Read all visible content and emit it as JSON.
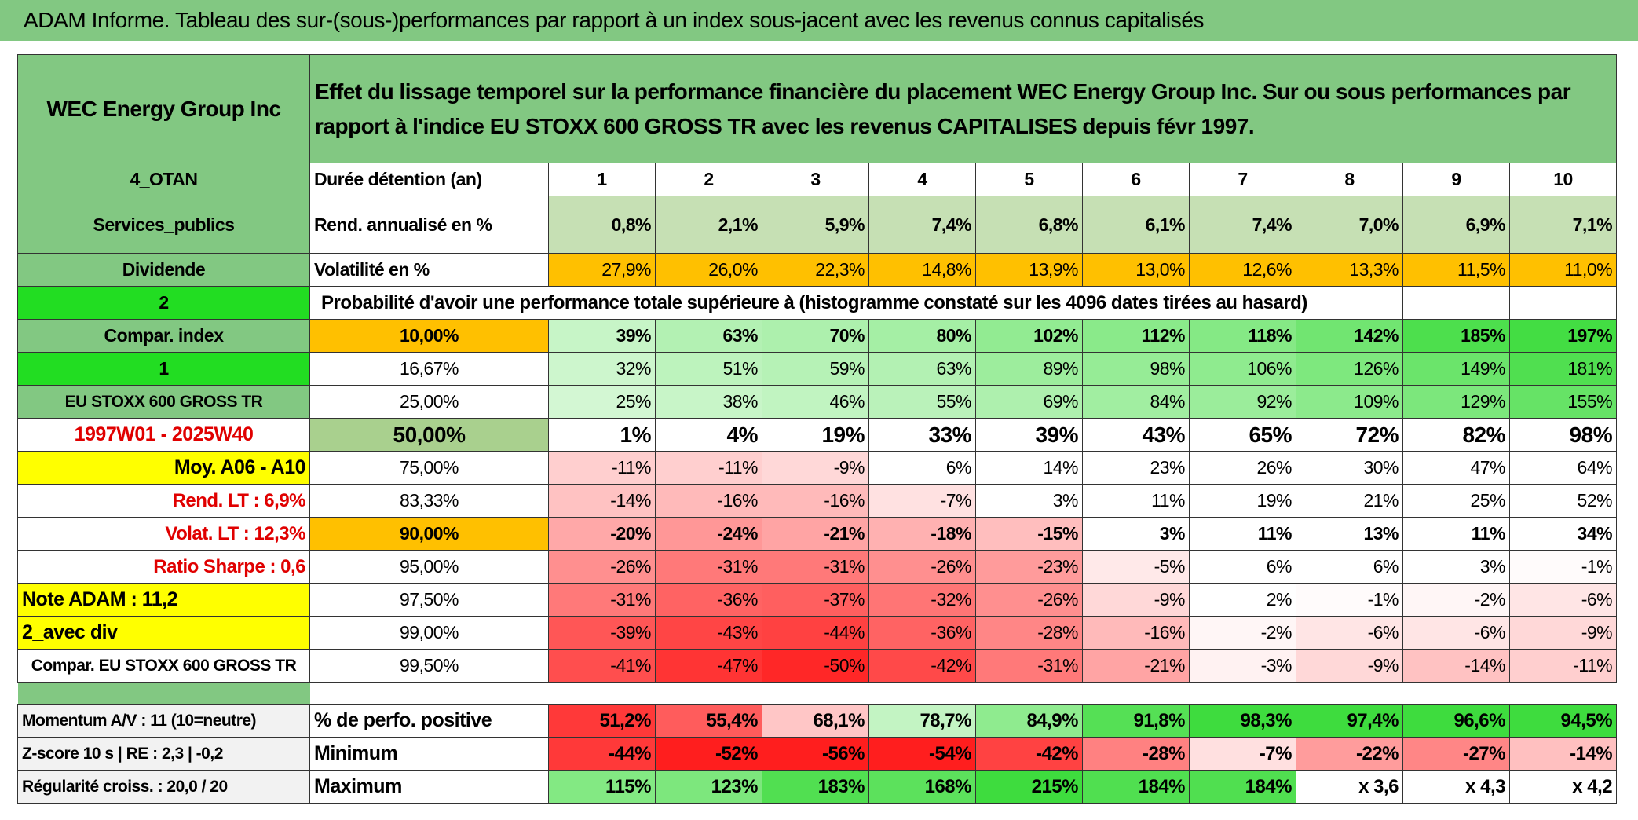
{
  "title": "ADAM Informe. Tableau des sur-(sous-)performances par rapport à un index sous-jacent avec les revenus connus capitalisés",
  "table": {
    "rows": [
      [
        "WEC Energy Group Inc",
        "Effet du lissage temporel sur la performance financière du placement WEC Energy Group Inc. Sur ou sous performances par rapport à l'indice EU STOXX 600 GROSS TR avec les revenus CAPITALISES depuis févr 1997."
      ],
      [
        "4_OTAN",
        "Durée détention (an)",
        1,
        2,
        3,
        4,
        5,
        6,
        7,
        8,
        9,
        10
      ],
      [
        "Services_publics",
        "Rend. annualisé en %",
        "0,8%",
        "2,1%",
        "5,9%",
        "7,4%",
        "6,8%",
        "6,1%",
        "7,4%",
        "7,0%",
        "6,9%",
        "7,1%"
      ],
      [
        "Dividende",
        "Volatilité en %",
        "27,9%",
        "26,0%",
        "22,3%",
        "14,8%",
        "13,9%",
        "13,0%",
        "12,6%",
        "13,3%",
        "11,5%",
        "11,0%"
      ],
      [
        "2",
        "Probabilité d'avoir une performance totale supérieure à (histogramme constaté sur les 4096 dates tirées au hasard)"
      ],
      [
        "Compar. index",
        "10,00%",
        "39%",
        "63%",
        "70%",
        "80%",
        "102%",
        "112%",
        "118%",
        "142%",
        "185%",
        "197%"
      ],
      [
        "1",
        "16,67%",
        "32%",
        "51%",
        "59%",
        "63%",
        "89%",
        "98%",
        "106%",
        "126%",
        "149%",
        "181%"
      ],
      [
        "EU STOXX 600 GROSS TR",
        "25,00%",
        "25%",
        "38%",
        "46%",
        "55%",
        "69%",
        "84%",
        "92%",
        "109%",
        "129%",
        "155%"
      ],
      [
        "1997W01 - 2025W40",
        "50,00%",
        "1%",
        "4%",
        "19%",
        "33%",
        "39%",
        "43%",
        "65%",
        "72%",
        "82%",
        "98%"
      ],
      [
        "Moy. A06 - A10",
        "75,00%",
        "-11%",
        "-11%",
        "-9%",
        "6%",
        "14%",
        "23%",
        "26%",
        "30%",
        "47%",
        "64%"
      ],
      [
        "Rend. LT :   6,9%",
        "83,33%",
        "-14%",
        "-16%",
        "-16%",
        "-7%",
        "3%",
        "11%",
        "19%",
        "21%",
        "25%",
        "52%"
      ],
      [
        "Volat. LT :   12,3%",
        "90,00%",
        "-20%",
        "-24%",
        "-21%",
        "-18%",
        "-15%",
        "3%",
        "11%",
        "13%",
        "11%",
        "34%"
      ],
      [
        "Ratio Sharpe :   0,6",
        "95,00%",
        "-26%",
        "-31%",
        "-31%",
        "-26%",
        "-23%",
        "-5%",
        "6%",
        "6%",
        "3%",
        "-1%"
      ],
      [
        "Note ADAM : 11,2",
        "97,50%",
        "-31%",
        "-36%",
        "-37%",
        "-32%",
        "-26%",
        "-9%",
        "2%",
        "-1%",
        "-2%",
        "-6%"
      ],
      [
        "2_avec div",
        "99,00%",
        "-39%",
        "-43%",
        "-44%",
        "-36%",
        "-28%",
        "-16%",
        "-2%",
        "-6%",
        "-6%",
        "-9%"
      ],
      [
        "Compar. EU STOXX 600 GROSS TR",
        "99,50%",
        "-41%",
        "-47%",
        "-50%",
        "-42%",
        "-31%",
        "-21%",
        "-3%",
        "-9%",
        "-14%",
        "-11%"
      ]
    ]
  },
  "summary": {
    "rows": [
      [
        "Momentum A/V : 11 (10=neutre)",
        "% de perfo. positive",
        "51,2%",
        "55,4%",
        "68,1%",
        "78,7%",
        "84,9%",
        "91,8%",
        "98,3%",
        "97,4%",
        "96,6%",
        "94,5%"
      ],
      [
        "Z-score 10 s | RE : 2,3 | -0,2",
        "Minimum",
        "-44%",
        "-52%",
        "-56%",
        "-54%",
        "-42%",
        "-28%",
        "-7%",
        "-22%",
        "-27%",
        "-14%"
      ],
      [
        "Régularité croiss. : 20,0 / 20",
        "Maximum",
        "115%",
        "123%",
        "183%",
        "168%",
        "215%",
        "184%",
        "184%",
        "x 3,6",
        "x 4,3",
        "x 4,2"
      ]
    ]
  }
}
